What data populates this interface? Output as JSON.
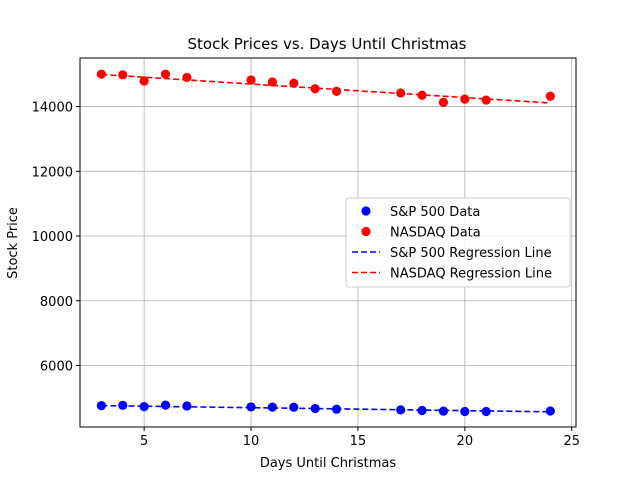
{
  "chart_data": {
    "type": "scatter",
    "title": "Stock Prices vs. Days Until Christmas",
    "xlabel": "Days Until Christmas",
    "ylabel": "Stock Price",
    "xlim": [
      2,
      25.2
    ],
    "ylim": [
      4100,
      15500
    ],
    "xticks": [
      5,
      10,
      15,
      20,
      25
    ],
    "yticks": [
      6000,
      8000,
      10000,
      12000,
      14000
    ],
    "grid": true,
    "legend_position": "center-right",
    "series": [
      {
        "name": "S&P 500 Data",
        "kind": "scatter",
        "color": "#0000ff",
        "x": [
          3,
          4,
          5,
          6,
          7,
          10,
          11,
          12,
          13,
          14,
          17,
          18,
          19,
          20,
          21,
          24
        ],
        "y": [
          4760,
          4770,
          4730,
          4775,
          4750,
          4720,
          4715,
          4710,
          4670,
          4650,
          4630,
          4610,
          4590,
          4580,
          4580,
          4595
        ]
      },
      {
        "name": "NASDAQ Data",
        "kind": "scatter",
        "color": "#ff0000",
        "x": [
          3,
          4,
          5,
          6,
          7,
          10,
          11,
          12,
          13,
          14,
          17,
          18,
          19,
          20,
          21,
          24
        ],
        "y": [
          15000,
          14980,
          14790,
          15000,
          14900,
          14820,
          14760,
          14720,
          14550,
          14470,
          14420,
          14350,
          14130,
          14230,
          14200,
          14320
        ]
      },
      {
        "name": "S&P 500 Regression Line",
        "kind": "line",
        "style": "dashed",
        "color": "#0000ff",
        "x": [
          3,
          24
        ],
        "y": [
          4760,
          4570
        ]
      },
      {
        "name": "NASDAQ Regression Line",
        "kind": "line",
        "style": "dashed",
        "color": "#ff0000",
        "x": [
          3,
          24
        ],
        "y": [
          14990,
          14110
        ]
      }
    ]
  }
}
